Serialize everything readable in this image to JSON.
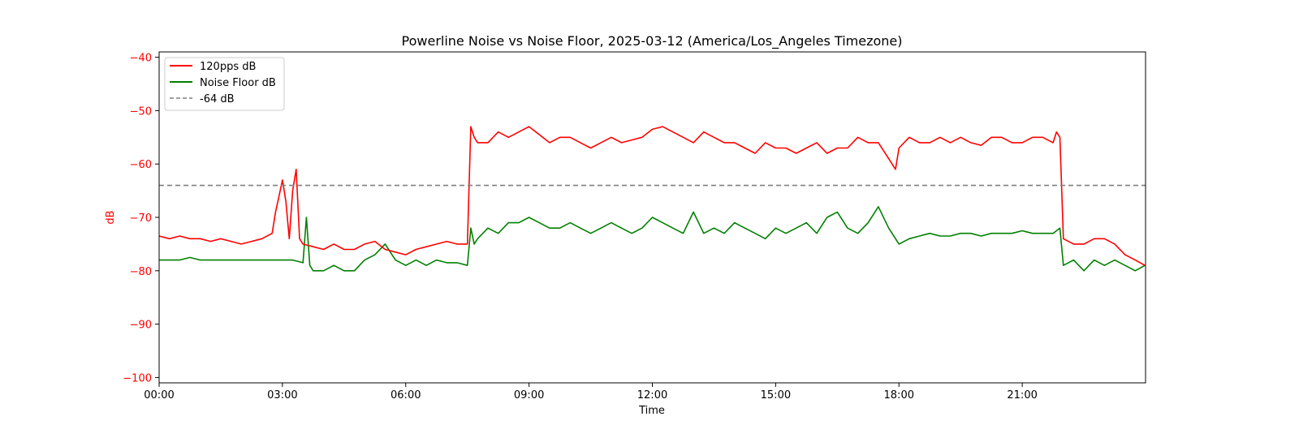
{
  "chart_data": {
    "type": "line",
    "title": "Powerline Noise vs Noise Floor, 2025-03-12 (America/Los_Angeles Timezone)",
    "xlabel": "Time",
    "ylabel": "dB",
    "x_range": [
      "00:00",
      "24:00"
    ],
    "ylim": [
      -101,
      -39
    ],
    "x_ticks": [
      "00:00",
      "03:00",
      "06:00",
      "09:00",
      "12:00",
      "15:00",
      "18:00",
      "21:00"
    ],
    "y_ticks": [
      -100,
      -90,
      -80,
      -70,
      -60,
      -50,
      -40
    ],
    "grid": false,
    "legend_position": "top-left",
    "colors": {
      "signal": "#ff0000",
      "noise_floor": "#008000",
      "threshold": "#808080",
      "ylabel": "#ff0000"
    },
    "series": [
      {
        "name": "120pps dB",
        "x": [
          "00:00",
          "00:15",
          "00:30",
          "00:45",
          "01:00",
          "01:15",
          "01:30",
          "01:45",
          "02:00",
          "02:15",
          "02:30",
          "02:45",
          "02:50",
          "02:55",
          "03:00",
          "03:05",
          "03:10",
          "03:15",
          "03:20",
          "03:25",
          "03:30",
          "03:45",
          "04:00",
          "04:15",
          "04:30",
          "04:45",
          "05:00",
          "05:15",
          "05:30",
          "05:45",
          "06:00",
          "06:15",
          "06:30",
          "06:45",
          "07:00",
          "07:15",
          "07:30",
          "07:35",
          "07:40",
          "07:45",
          "08:00",
          "08:15",
          "08:30",
          "08:45",
          "09:00",
          "09:15",
          "09:30",
          "09:45",
          "10:00",
          "10:15",
          "10:30",
          "10:45",
          "11:00",
          "11:15",
          "11:30",
          "11:45",
          "12:00",
          "12:15",
          "12:30",
          "12:45",
          "13:00",
          "13:15",
          "13:30",
          "13:45",
          "14:00",
          "14:15",
          "14:30",
          "14:45",
          "15:00",
          "15:15",
          "15:30",
          "15:45",
          "16:00",
          "16:15",
          "16:30",
          "16:45",
          "17:00",
          "17:15",
          "17:30",
          "17:45",
          "17:55",
          "18:00",
          "18:15",
          "18:30",
          "18:45",
          "19:00",
          "19:15",
          "19:30",
          "19:45",
          "20:00",
          "20:15",
          "20:30",
          "20:45",
          "21:00",
          "21:15",
          "21:30",
          "21:45",
          "21:50",
          "21:55",
          "22:00",
          "22:15",
          "22:30",
          "22:45",
          "23:00",
          "23:15",
          "23:30",
          "23:45",
          "23:59"
        ],
        "values": [
          -73.5,
          -74,
          -73.5,
          -74,
          -74,
          -74.5,
          -74,
          -74.5,
          -75,
          -74.5,
          -74,
          -73,
          -69,
          -66,
          -63,
          -67,
          -74,
          -65,
          -61,
          -74,
          -75,
          -75.5,
          -76,
          -75,
          -76,
          -76,
          -75,
          -74.5,
          -76,
          -76.5,
          -77,
          -76,
          -75.5,
          -75,
          -74.5,
          -75,
          -75,
          -53,
          -55,
          -56,
          -56,
          -54,
          -55,
          -54,
          -53,
          -54.5,
          -56,
          -55,
          -55,
          -56,
          -57,
          -56,
          -55,
          -56,
          -55.5,
          -55,
          -53.5,
          -53,
          -54,
          -55,
          -56,
          -54,
          -55,
          -56,
          -56,
          -57,
          -58,
          -56,
          -57,
          -57,
          -58,
          -57,
          -56,
          -58,
          -57,
          -57,
          -55,
          -56,
          -56,
          -59,
          -61,
          -57,
          -55,
          -56,
          -56,
          -55,
          -56,
          -55,
          -56,
          -56.5,
          -55,
          -55,
          -56,
          -56,
          -55,
          -55,
          -56,
          -54,
          -55,
          -74,
          -75,
          -75,
          -74,
          -74,
          -75,
          -77,
          -78,
          -79
        ]
      },
      {
        "name": "Noise Floor dB",
        "x": [
          "00:00",
          "00:15",
          "00:30",
          "00:45",
          "01:00",
          "01:15",
          "01:30",
          "01:45",
          "02:00",
          "02:15",
          "02:30",
          "02:45",
          "03:00",
          "03:15",
          "03:30",
          "03:35",
          "03:40",
          "03:45",
          "04:00",
          "04:15",
          "04:30",
          "04:45",
          "05:00",
          "05:15",
          "05:30",
          "05:45",
          "06:00",
          "06:15",
          "06:30",
          "06:45",
          "07:00",
          "07:15",
          "07:30",
          "07:35",
          "07:40",
          "07:45",
          "08:00",
          "08:15",
          "08:30",
          "08:45",
          "09:00",
          "09:15",
          "09:30",
          "09:45",
          "10:00",
          "10:15",
          "10:30",
          "10:45",
          "11:00",
          "11:15",
          "11:30",
          "11:45",
          "12:00",
          "12:15",
          "12:30",
          "12:45",
          "13:00",
          "13:15",
          "13:30",
          "13:45",
          "14:00",
          "14:15",
          "14:30",
          "14:45",
          "15:00",
          "15:15",
          "15:30",
          "15:45",
          "16:00",
          "16:15",
          "16:30",
          "16:45",
          "17:00",
          "17:15",
          "17:30",
          "17:45",
          "18:00",
          "18:15",
          "18:30",
          "18:45",
          "19:00",
          "19:15",
          "19:30",
          "19:45",
          "20:00",
          "20:15",
          "20:30",
          "20:45",
          "21:00",
          "21:15",
          "21:30",
          "21:45",
          "21:50",
          "21:55",
          "22:00",
          "22:15",
          "22:30",
          "22:45",
          "23:00",
          "23:15",
          "23:30",
          "23:45",
          "23:59"
        ],
        "values": [
          -78,
          -78,
          -78,
          -77.5,
          -78,
          -78,
          -78,
          -78,
          -78,
          -78,
          -78,
          -78,
          -78,
          -78,
          -78.5,
          -70,
          -79,
          -80,
          -80,
          -79,
          -80,
          -80,
          -78,
          -77,
          -75,
          -78,
          -79,
          -78,
          -79,
          -78,
          -78.5,
          -78.5,
          -79,
          -72,
          -75,
          -74,
          -72,
          -73,
          -71,
          -71,
          -70,
          -71,
          -72,
          -72,
          -71,
          -72,
          -73,
          -72,
          -71,
          -72,
          -73,
          -72,
          -70,
          -71,
          -72,
          -73,
          -69,
          -73,
          -72,
          -73,
          -71,
          -72,
          -73,
          -74,
          -72,
          -73,
          -72,
          -71,
          -73,
          -70,
          -69,
          -72,
          -73,
          -71,
          -68,
          -72,
          -75,
          -74,
          -73.5,
          -73,
          -73.5,
          -73.5,
          -73,
          -73,
          -73.5,
          -73,
          -73,
          -73,
          -72.5,
          -73,
          -73,
          -73,
          -72.5,
          -72,
          -79,
          -78,
          -80,
          -78,
          -79,
          -78,
          -79,
          -80,
          -79
        ]
      },
      {
        "name": "-64 dB",
        "style": "dashed",
        "values": [
          -64
        ]
      }
    ]
  }
}
